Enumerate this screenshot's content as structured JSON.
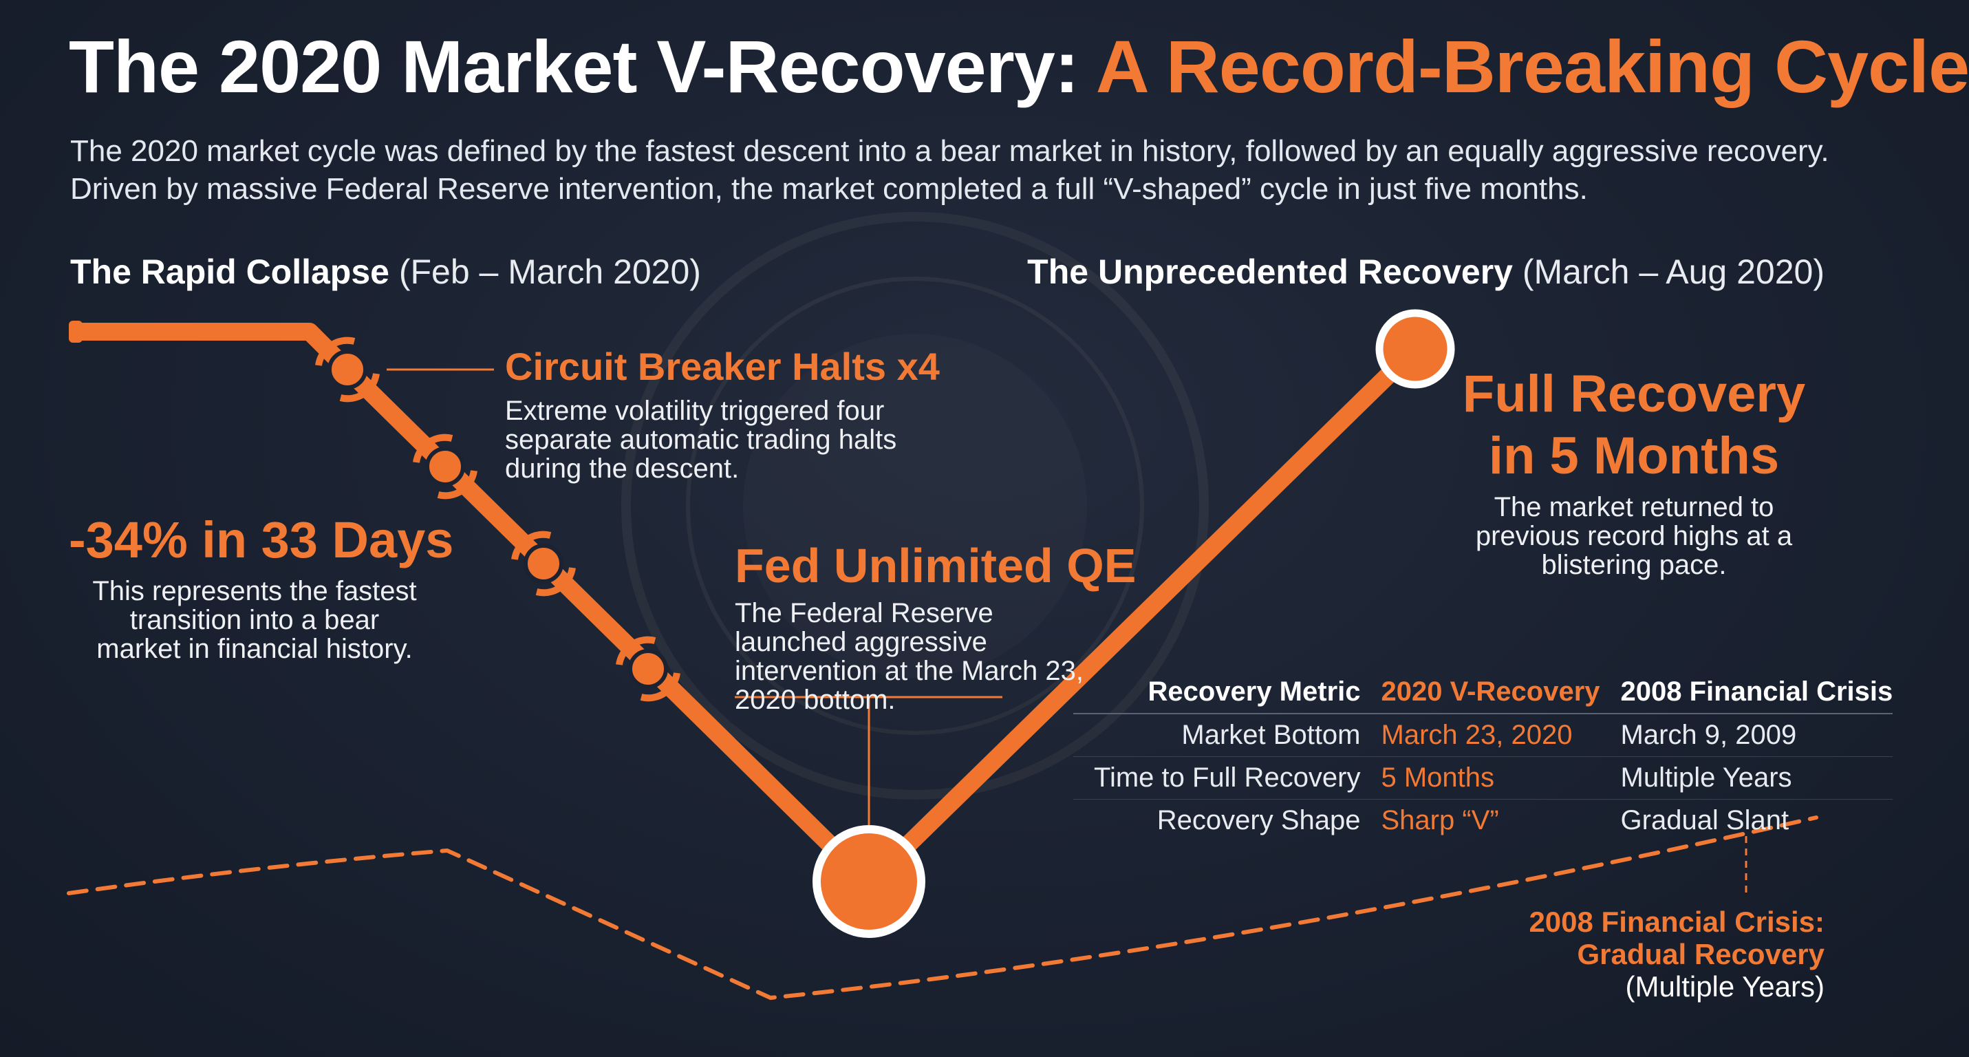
{
  "header": {
    "title_main": "The 2020 Market V-Recovery: ",
    "title_accent": "A Record-Breaking Cycle",
    "subtitle": "The 2020 market cycle was defined by the fastest descent into a bear market in history, followed by an equally aggressive recovery. Driven by massive Federal Reserve intervention, the market completed a full “V-shaped” cycle in just five months."
  },
  "sections": {
    "collapse": {
      "name": "The Rapid Collapse",
      "period": " (Feb – March 2020)"
    },
    "recovery": {
      "name": "The Unprecedented Recovery",
      "period": " (March – Aug 2020)"
    }
  },
  "callouts": {
    "circuit_breaker": {
      "title": "Circuit Breaker Halts x4",
      "text": "Extreme volatility triggered four separate automatic trading halts during the descent."
    },
    "drop": {
      "title": "-34% in 33 Days",
      "text": "This represents the fastest transition into a bear market in financial history."
    },
    "fed": {
      "title": "Fed Unlimited QE",
      "text": "The Federal Reserve launched aggressive intervention at the March 23, 2020 bottom."
    },
    "full_recovery": {
      "title_line1": "Full Recovery",
      "title_line2": "in 5 Months",
      "text": "The market returned to previous record highs at a blistering pace."
    },
    "crisis_2008": {
      "line1": "2008 Financial Crisis:",
      "line2": "Gradual Recovery",
      "line3": "(Multiple Years)"
    }
  },
  "table": {
    "headers": [
      "Recovery Metric",
      "2020 V-Recovery",
      "2008 Financial Crisis"
    ],
    "rows": [
      [
        "Market Bottom",
        "March 23, 2020",
        "March 9, 2009"
      ],
      [
        "Time to Full Recovery",
        "5 Months",
        "Multiple Years"
      ],
      [
        "Recovery Shape",
        "Sharp “V”",
        "Gradual Slant"
      ]
    ]
  },
  "colors": {
    "accent": "#f37a35",
    "background": "#1a2130",
    "text": "#ffffff"
  },
  "chart_data": {
    "type": "line",
    "series": [
      {
        "name": "2020 V-Recovery",
        "style": "solid",
        "shape": "sharp V"
      },
      {
        "name": "2008 Financial Crisis",
        "style": "dashed",
        "shape": "gradual"
      }
    ],
    "markers": [
      "Circuit Breaker Halts x4",
      "Fed Unlimited QE",
      "Full Recovery in 5 Months"
    ],
    "circuit_breaker_count": 4
  }
}
